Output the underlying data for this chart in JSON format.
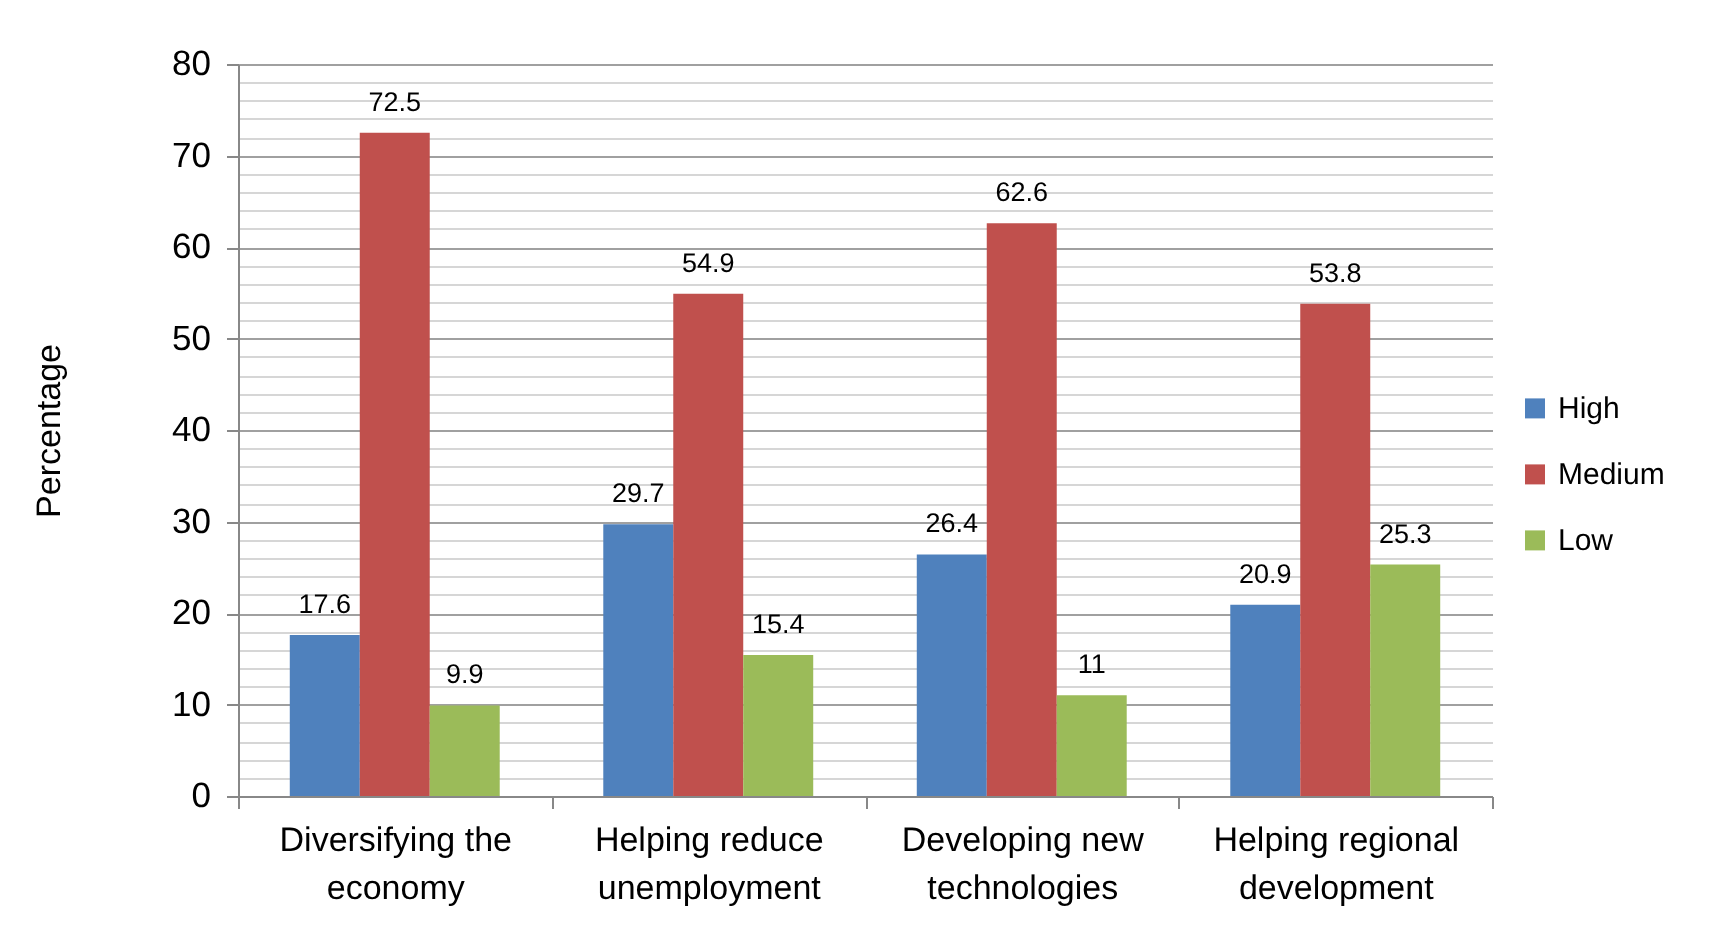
{
  "chart_data": {
    "type": "bar",
    "categories": [
      "Diversifying the economy",
      "Helping reduce unemployment",
      "Developing new technologies",
      "Helping regional development"
    ],
    "series": [
      {
        "name": "High",
        "color": "#4f81bd",
        "values": [
          17.6,
          29.7,
          26.4,
          20.9
        ]
      },
      {
        "name": "Medium",
        "color": "#c0504d",
        "values": [
          72.5,
          54.9,
          62.6,
          53.8
        ]
      },
      {
        "name": "Low",
        "color": "#9bbb59",
        "values": [
          9.9,
          15.4,
          11,
          25.3
        ]
      }
    ],
    "ylabel": "Percentage",
    "ylim": [
      0,
      80
    ],
    "yticks": [
      0,
      {
        "value": 2,
        "label": null
      },
      {
        "value": 4,
        "label": null
      },
      {
        "value": 6,
        "label": null
      },
      {
        "value": 8,
        "label": null
      },
      10,
      {
        "value": 12,
        "label": null
      },
      {
        "value": 14,
        "label": null
      },
      {
        "value": 16,
        "label": null
      },
      {
        "value": 18,
        "label": null
      },
      20,
      {
        "value": 22,
        "label": null
      },
      {
        "value": 24,
        "label": null
      },
      {
        "value": 26,
        "label": null
      },
      {
        "value": 28,
        "label": null
      },
      30,
      {
        "value": 32,
        "label": null
      },
      {
        "value": 34,
        "label": null
      },
      {
        "value": 36,
        "label": null
      },
      {
        "value": 38,
        "label": null
      },
      40,
      {
        "value": 42,
        "label": null
      },
      {
        "value": 44,
        "label": null
      },
      {
        "value": 46,
        "label": null
      },
      {
        "value": 48,
        "label": null
      },
      50,
      {
        "value": 52,
        "label": null
      },
      {
        "value": 54,
        "label": null
      },
      {
        "value": 56,
        "label": null
      },
      {
        "value": 58,
        "label": null
      },
      60,
      {
        "value": 62,
        "label": null
      },
      {
        "value": 64,
        "label": null
      },
      {
        "value": 66,
        "label": null
      },
      {
        "value": 68,
        "label": null
      },
      70,
      {
        "value": 72,
        "label": null
      },
      {
        "value": 74,
        "label": null
      },
      {
        "value": 76,
        "label": null
      },
      {
        "value": 78,
        "label": null
      },
      80
    ],
    "grid": "y",
    "legend": "right",
    "data_labels": true
  }
}
